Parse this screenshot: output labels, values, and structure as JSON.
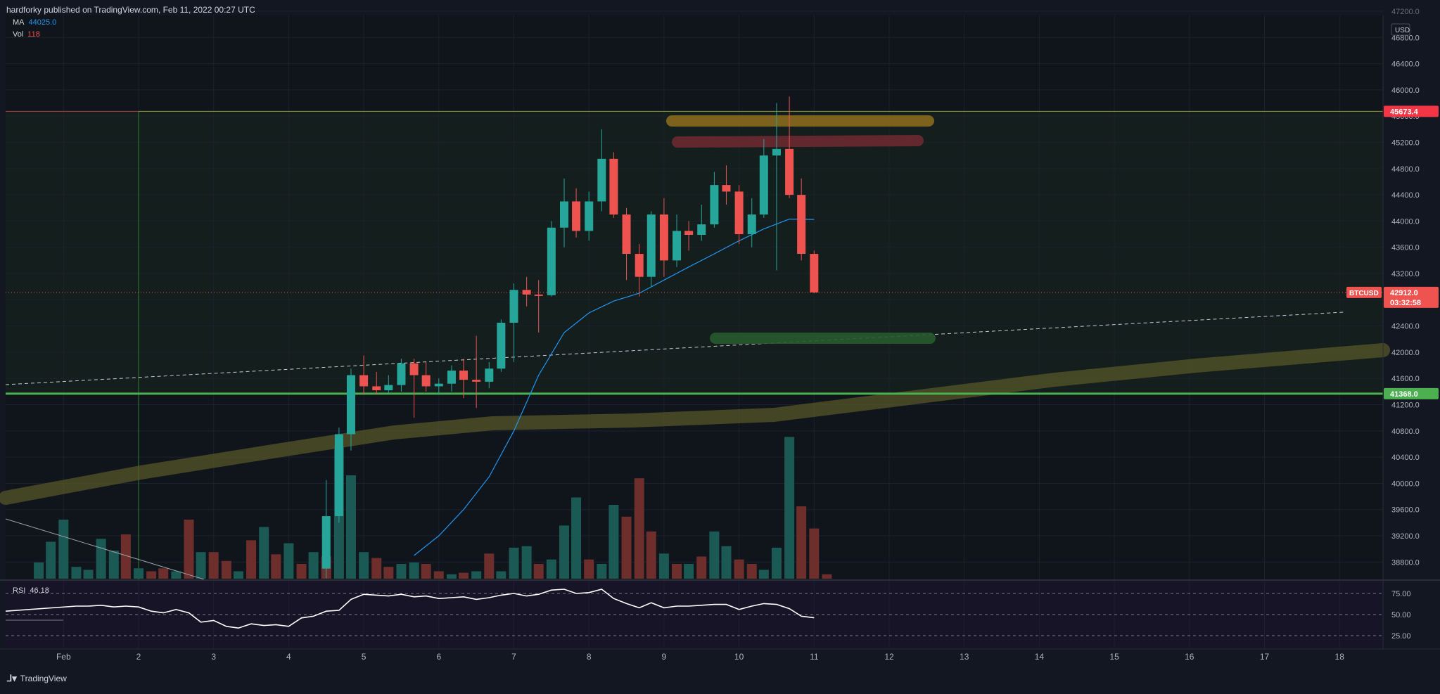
{
  "header": {
    "published_text": "hardforky published on TradingView.com, Feb 11, 2022 00:27 UTC"
  },
  "legend": {
    "ma_label": "MA",
    "ma_value": "44025.0",
    "vol_label": "Vol",
    "vol_value": "118"
  },
  "currency": "USD",
  "price_tags": {
    "resistance": "45673.4",
    "symbol": "BTCUSD",
    "current_price": "42912.0",
    "countdown": "03:32:58",
    "support": "41368.0"
  },
  "rsi": {
    "label": "RSI",
    "value": "46.18"
  },
  "branding": "TradingView",
  "colors": {
    "background": "#131722",
    "up": "#26a69a",
    "down": "#ef5350",
    "ma": "#2196f3",
    "support": "#4caf50",
    "resistance_tag": "#f23645",
    "vol_up": "#1b5a54",
    "vol_down": "#6e2f2c",
    "rsi": "#ffffff"
  },
  "chart_data": [
    {
      "type": "candlestick",
      "title": "BTCUSD",
      "ylim": [
        38600,
        47200
      ],
      "yticks": [
        38800,
        39200,
        39600,
        40000,
        40400,
        40800,
        41200,
        41600,
        42000,
        42400,
        42800,
        43200,
        43600,
        44000,
        44400,
        44800,
        45200,
        45600,
        46000,
        46400,
        46800,
        47200
      ],
      "ytick_labels": [
        "38800.0",
        "39200.0",
        "39600.0",
        "40000.0",
        "40400.0",
        "40800.0",
        "41200.0",
        "41600.0",
        "42000.0",
        "42400.0",
        "42800.0",
        "43200.0",
        "43600.0",
        "44000.0",
        "44400.0",
        "44800.0",
        "45200.0",
        "45600.0",
        "46000.0",
        "46400.0",
        "46800.0",
        "47200.0"
      ],
      "x_ticks": [
        {
          "label": "Feb",
          "day": 1
        },
        {
          "label": "2",
          "day": 2
        },
        {
          "label": "3",
          "day": 3
        },
        {
          "label": "4",
          "day": 4
        },
        {
          "label": "5",
          "day": 5
        },
        {
          "label": "6",
          "day": 6
        },
        {
          "label": "7",
          "day": 7
        },
        {
          "label": "8",
          "day": 8
        },
        {
          "label": "9",
          "day": 9
        },
        {
          "label": "10",
          "day": 10
        },
        {
          "label": "11",
          "day": 11
        },
        {
          "label": "12",
          "day": 12
        },
        {
          "label": "13",
          "day": 13
        },
        {
          "label": "14",
          "day": 14
        },
        {
          "label": "15",
          "day": 15
        },
        {
          "label": "16",
          "day": 16
        },
        {
          "label": "17",
          "day": 17
        },
        {
          "label": "18",
          "day": 18
        }
      ],
      "candles": [
        {
          "t": 4.5,
          "o": 38700,
          "h": 40050,
          "l": 38550,
          "c": 39500
        },
        {
          "t": 4.67,
          "o": 39500,
          "h": 40850,
          "l": 39400,
          "c": 40750
        },
        {
          "t": 4.83,
          "o": 40750,
          "h": 41750,
          "l": 40500,
          "c": 41650
        },
        {
          "t": 5.0,
          "o": 41650,
          "h": 41950,
          "l": 41350,
          "c": 41480
        },
        {
          "t": 5.17,
          "o": 41480,
          "h": 41700,
          "l": 41350,
          "c": 41420
        },
        {
          "t": 5.33,
          "o": 41420,
          "h": 41650,
          "l": 41380,
          "c": 41500
        },
        {
          "t": 5.5,
          "o": 41500,
          "h": 41900,
          "l": 41400,
          "c": 41830
        },
        {
          "t": 5.67,
          "o": 41830,
          "h": 41900,
          "l": 41000,
          "c": 41650
        },
        {
          "t": 5.83,
          "o": 41650,
          "h": 41850,
          "l": 41400,
          "c": 41480
        },
        {
          "t": 6.0,
          "o": 41480,
          "h": 41600,
          "l": 41350,
          "c": 41520
        },
        {
          "t": 6.17,
          "o": 41520,
          "h": 41800,
          "l": 41400,
          "c": 41720
        },
        {
          "t": 6.33,
          "o": 41720,
          "h": 41900,
          "l": 41300,
          "c": 41580
        },
        {
          "t": 6.5,
          "o": 41580,
          "h": 42250,
          "l": 41150,
          "c": 41550
        },
        {
          "t": 6.67,
          "o": 41550,
          "h": 41850,
          "l": 41450,
          "c": 41750
        },
        {
          "t": 6.83,
          "o": 41750,
          "h": 42500,
          "l": 41700,
          "c": 42450
        },
        {
          "t": 7.0,
          "o": 42450,
          "h": 43050,
          "l": 41850,
          "c": 42950
        },
        {
          "t": 7.17,
          "o": 42950,
          "h": 43150,
          "l": 42700,
          "c": 42880
        },
        {
          "t": 7.33,
          "o": 42880,
          "h": 43100,
          "l": 42300,
          "c": 42870
        },
        {
          "t": 7.5,
          "o": 42870,
          "h": 44000,
          "l": 42850,
          "c": 43900
        },
        {
          "t": 7.67,
          "o": 43900,
          "h": 44650,
          "l": 43600,
          "c": 44300
        },
        {
          "t": 7.83,
          "o": 44300,
          "h": 44500,
          "l": 43750,
          "c": 43850
        },
        {
          "t": 8.0,
          "o": 43850,
          "h": 44450,
          "l": 43700,
          "c": 44300
        },
        {
          "t": 8.17,
          "o": 44300,
          "h": 45400,
          "l": 44150,
          "c": 44950
        },
        {
          "t": 8.33,
          "o": 44950,
          "h": 45050,
          "l": 44050,
          "c": 44100
        },
        {
          "t": 8.5,
          "o": 44100,
          "h": 44200,
          "l": 43100,
          "c": 43500
        },
        {
          "t": 8.67,
          "o": 43500,
          "h": 43650,
          "l": 42850,
          "c": 43150
        },
        {
          "t": 8.83,
          "o": 43150,
          "h": 44150,
          "l": 43000,
          "c": 44100
        },
        {
          "t": 9.0,
          "o": 44100,
          "h": 44350,
          "l": 43150,
          "c": 43400
        },
        {
          "t": 9.17,
          "o": 43400,
          "h": 44100,
          "l": 43300,
          "c": 43850
        },
        {
          "t": 9.33,
          "o": 43850,
          "h": 44000,
          "l": 43550,
          "c": 43790
        },
        {
          "t": 9.5,
          "o": 43790,
          "h": 44250,
          "l": 43700,
          "c": 43950
        },
        {
          "t": 9.67,
          "o": 43950,
          "h": 44750,
          "l": 43900,
          "c": 44550
        },
        {
          "t": 9.83,
          "o": 44550,
          "h": 44850,
          "l": 44250,
          "c": 44450
        },
        {
          "t": 10.0,
          "o": 44450,
          "h": 44550,
          "l": 43650,
          "c": 43800
        },
        {
          "t": 10.17,
          "o": 43800,
          "h": 44350,
          "l": 43600,
          "c": 44100
        },
        {
          "t": 10.33,
          "o": 44100,
          "h": 45250,
          "l": 44050,
          "c": 45000
        },
        {
          "t": 10.5,
          "o": 45000,
          "h": 45800,
          "l": 43250,
          "c": 45100
        },
        {
          "t": 10.67,
          "o": 45100,
          "h": 45900,
          "l": 44350,
          "c": 44400
        },
        {
          "t": 10.83,
          "o": 44400,
          "h": 44650,
          "l": 43400,
          "c": 43500
        },
        {
          "t": 11.0,
          "o": 43500,
          "h": 43550,
          "l": 42900,
          "c": 42912
        }
      ],
      "ma_line": [
        {
          "t": 5.67,
          "v": 38900
        },
        {
          "t": 6.0,
          "v": 39200
        },
        {
          "t": 6.33,
          "v": 39600
        },
        {
          "t": 6.67,
          "v": 40100
        },
        {
          "t": 7.0,
          "v": 40800
        },
        {
          "t": 7.33,
          "v": 41650
        },
        {
          "t": 7.67,
          "v": 42300
        },
        {
          "t": 8.0,
          "v": 42600
        },
        {
          "t": 8.33,
          "v": 42780
        },
        {
          "t": 8.67,
          "v": 42900
        },
        {
          "t": 9.0,
          "v": 43100
        },
        {
          "t": 9.33,
          "v": 43300
        },
        {
          "t": 9.67,
          "v": 43500
        },
        {
          "t": 10.0,
          "v": 43700
        },
        {
          "t": 10.33,
          "v": 43880
        },
        {
          "t": 10.67,
          "v": 44030
        },
        {
          "t": 11.0,
          "v": 44025
        }
      ],
      "volume": [
        {
          "t": 0.67,
          "v": 22,
          "up": true
        },
        {
          "t": 0.83,
          "v": 50,
          "up": true
        },
        {
          "t": 1.0,
          "v": 80,
          "up": true
        },
        {
          "t": 1.17,
          "v": 16,
          "up": true
        },
        {
          "t": 1.33,
          "v": 12,
          "up": true
        },
        {
          "t": 1.5,
          "v": 54,
          "up": true
        },
        {
          "t": 1.67,
          "v": 38,
          "up": true
        },
        {
          "t": 1.83,
          "v": 60,
          "up": false
        },
        {
          "t": 2.0,
          "v": 14,
          "up": true
        },
        {
          "t": 2.17,
          "v": 10,
          "up": false
        },
        {
          "t": 2.33,
          "v": 14,
          "up": false
        },
        {
          "t": 2.5,
          "v": 10,
          "up": true
        },
        {
          "t": 2.67,
          "v": 80,
          "up": false
        },
        {
          "t": 2.83,
          "v": 36,
          "up": true
        },
        {
          "t": 3.0,
          "v": 36,
          "up": false
        },
        {
          "t": 3.17,
          "v": 24,
          "up": false
        },
        {
          "t": 3.33,
          "v": 10,
          "up": true
        },
        {
          "t": 3.5,
          "v": 52,
          "up": false
        },
        {
          "t": 3.67,
          "v": 70,
          "up": true
        },
        {
          "t": 3.83,
          "v": 33,
          "up": false
        },
        {
          "t": 4.0,
          "v": 48,
          "up": true
        },
        {
          "t": 4.17,
          "v": 20,
          "up": false
        },
        {
          "t": 4.33,
          "v": 36,
          "up": true
        },
        {
          "t": 4.5,
          "v": 30,
          "up": false
        },
        {
          "t": 4.67,
          "v": 180,
          "up": true
        },
        {
          "t": 4.83,
          "v": 140,
          "up": true
        },
        {
          "t": 5.0,
          "v": 36,
          "up": true
        },
        {
          "t": 5.17,
          "v": 28,
          "up": false
        },
        {
          "t": 5.33,
          "v": 16,
          "up": false
        },
        {
          "t": 5.5,
          "v": 20,
          "up": true
        },
        {
          "t": 5.67,
          "v": 22,
          "up": true
        },
        {
          "t": 5.83,
          "v": 20,
          "up": false
        },
        {
          "t": 6.0,
          "v": 10,
          "up": false
        },
        {
          "t": 6.17,
          "v": 6,
          "up": true
        },
        {
          "t": 6.33,
          "v": 8,
          "up": false
        },
        {
          "t": 6.5,
          "v": 10,
          "up": true
        },
        {
          "t": 6.67,
          "v": 34,
          "up": false
        },
        {
          "t": 6.83,
          "v": 10,
          "up": true
        },
        {
          "t": 7.0,
          "v": 42,
          "up": true
        },
        {
          "t": 7.17,
          "v": 44,
          "up": true
        },
        {
          "t": 7.33,
          "v": 20,
          "up": false
        },
        {
          "t": 7.5,
          "v": 26,
          "up": true
        },
        {
          "t": 7.67,
          "v": 72,
          "up": true
        },
        {
          "t": 7.83,
          "v": 110,
          "up": true
        },
        {
          "t": 8.0,
          "v": 26,
          "up": false
        },
        {
          "t": 8.17,
          "v": 20,
          "up": true
        },
        {
          "t": 8.33,
          "v": 100,
          "up": true
        },
        {
          "t": 8.5,
          "v": 84,
          "up": false
        },
        {
          "t": 8.67,
          "v": 136,
          "up": false
        },
        {
          "t": 8.83,
          "v": 64,
          "up": false
        },
        {
          "t": 9.0,
          "v": 34,
          "up": true
        },
        {
          "t": 9.17,
          "v": 20,
          "up": false
        },
        {
          "t": 9.33,
          "v": 20,
          "up": true
        },
        {
          "t": 9.5,
          "v": 30,
          "up": false
        },
        {
          "t": 9.67,
          "v": 64,
          "up": true
        },
        {
          "t": 9.83,
          "v": 44,
          "up": true
        },
        {
          "t": 10.0,
          "v": 26,
          "up": false
        },
        {
          "t": 10.17,
          "v": 20,
          "up": false
        },
        {
          "t": 10.33,
          "v": 12,
          "up": true
        },
        {
          "t": 10.5,
          "v": 42,
          "up": true
        },
        {
          "t": 10.67,
          "v": 192,
          "up": true
        },
        {
          "t": 10.83,
          "v": 98,
          "up": false
        },
        {
          "t": 11.0,
          "v": 68,
          "up": false
        },
        {
          "t": 11.17,
          "v": 6,
          "up": false
        }
      ],
      "volume_max": 200,
      "rsi": {
        "ylim": [
          10,
          90
        ],
        "yticks": [
          75,
          50,
          25
        ],
        "ytick_labels": [
          "75.00",
          "50.00",
          "25.00"
        ],
        "points": [
          {
            "t": 1.0,
            "v": 54
          },
          {
            "t": 1.17,
            "v": 60
          },
          {
            "t": 1.33,
            "v": 60
          },
          {
            "t": 1.5,
            "v": 61
          },
          {
            "t": 1.67,
            "v": 59
          },
          {
            "t": 1.83,
            "v": 60
          },
          {
            "t": 2.0,
            "v": 59
          },
          {
            "t": 2.17,
            "v": 54
          },
          {
            "t": 2.33,
            "v": 52
          },
          {
            "t": 2.5,
            "v": 56
          },
          {
            "t": 2.67,
            "v": 52
          },
          {
            "t": 2.83,
            "v": 41
          },
          {
            "t": 3.0,
            "v": 43
          },
          {
            "t": 3.17,
            "v": 36
          },
          {
            "t": 3.33,
            "v": 34
          },
          {
            "t": 3.5,
            "v": 39
          },
          {
            "t": 3.67,
            "v": 37
          },
          {
            "t": 3.83,
            "v": 38
          },
          {
            "t": 4.0,
            "v": 36
          },
          {
            "t": 4.17,
            "v": 46
          },
          {
            "t": 4.33,
            "v": 48
          },
          {
            "t": 4.5,
            "v": 54
          },
          {
            "t": 4.67,
            "v": 55
          },
          {
            "t": 4.83,
            "v": 68
          },
          {
            "t": 5.0,
            "v": 74
          },
          {
            "t": 5.17,
            "v": 73
          },
          {
            "t": 5.33,
            "v": 72
          },
          {
            "t": 5.5,
            "v": 74
          },
          {
            "t": 5.67,
            "v": 71
          },
          {
            "t": 5.83,
            "v": 72
          },
          {
            "t": 6.0,
            "v": 69
          },
          {
            "t": 6.17,
            "v": 70
          },
          {
            "t": 6.33,
            "v": 71
          },
          {
            "t": 6.5,
            "v": 68
          },
          {
            "t": 6.67,
            "v": 70
          },
          {
            "t": 6.83,
            "v": 73
          },
          {
            "t": 7.0,
            "v": 75
          },
          {
            "t": 7.17,
            "v": 72
          },
          {
            "t": 7.33,
            "v": 74
          },
          {
            "t": 7.5,
            "v": 79
          },
          {
            "t": 7.67,
            "v": 80
          },
          {
            "t": 7.83,
            "v": 75
          },
          {
            "t": 8.0,
            "v": 76
          },
          {
            "t": 8.17,
            "v": 80
          },
          {
            "t": 8.33,
            "v": 69
          },
          {
            "t": 8.5,
            "v": 63
          },
          {
            "t": 8.67,
            "v": 58
          },
          {
            "t": 8.83,
            "v": 64
          },
          {
            "t": 9.0,
            "v": 58
          },
          {
            "t": 9.17,
            "v": 60
          },
          {
            "t": 9.33,
            "v": 60
          },
          {
            "t": 9.5,
            "v": 61
          },
          {
            "t": 9.67,
            "v": 62
          },
          {
            "t": 9.83,
            "v": 62
          },
          {
            "t": 10.0,
            "v": 56
          },
          {
            "t": 10.17,
            "v": 60
          },
          {
            "t": 10.33,
            "v": 63
          },
          {
            "t": 10.5,
            "v": 62
          },
          {
            "t": 10.67,
            "v": 57
          },
          {
            "t": 10.83,
            "v": 48
          },
          {
            "t": 11.0,
            "v": 46.18
          }
        ]
      }
    }
  ]
}
